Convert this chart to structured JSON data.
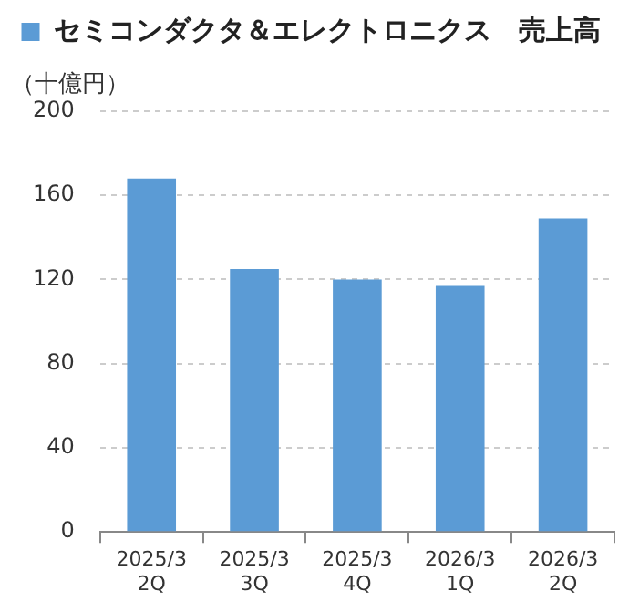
{
  "chart_data": {
    "type": "bar",
    "ylabel": "（十億円）",
    "categories": [
      "2025/3\n2Q",
      "2025/3\n3Q",
      "2025/3\n4Q",
      "2026/3\n1Q",
      "2026/3\n2Q"
    ],
    "series": [
      {
        "name": "セミコンダクタ＆エレクトロニクス　売上高",
        "color": "#5b9bd5",
        "values": [
          168,
          125,
          120,
          117,
          149
        ]
      }
    ],
    "ylim": [
      0,
      200
    ],
    "yticks": [
      0,
      40,
      80,
      120,
      160,
      200
    ],
    "grid": "y",
    "legend": "top"
  }
}
